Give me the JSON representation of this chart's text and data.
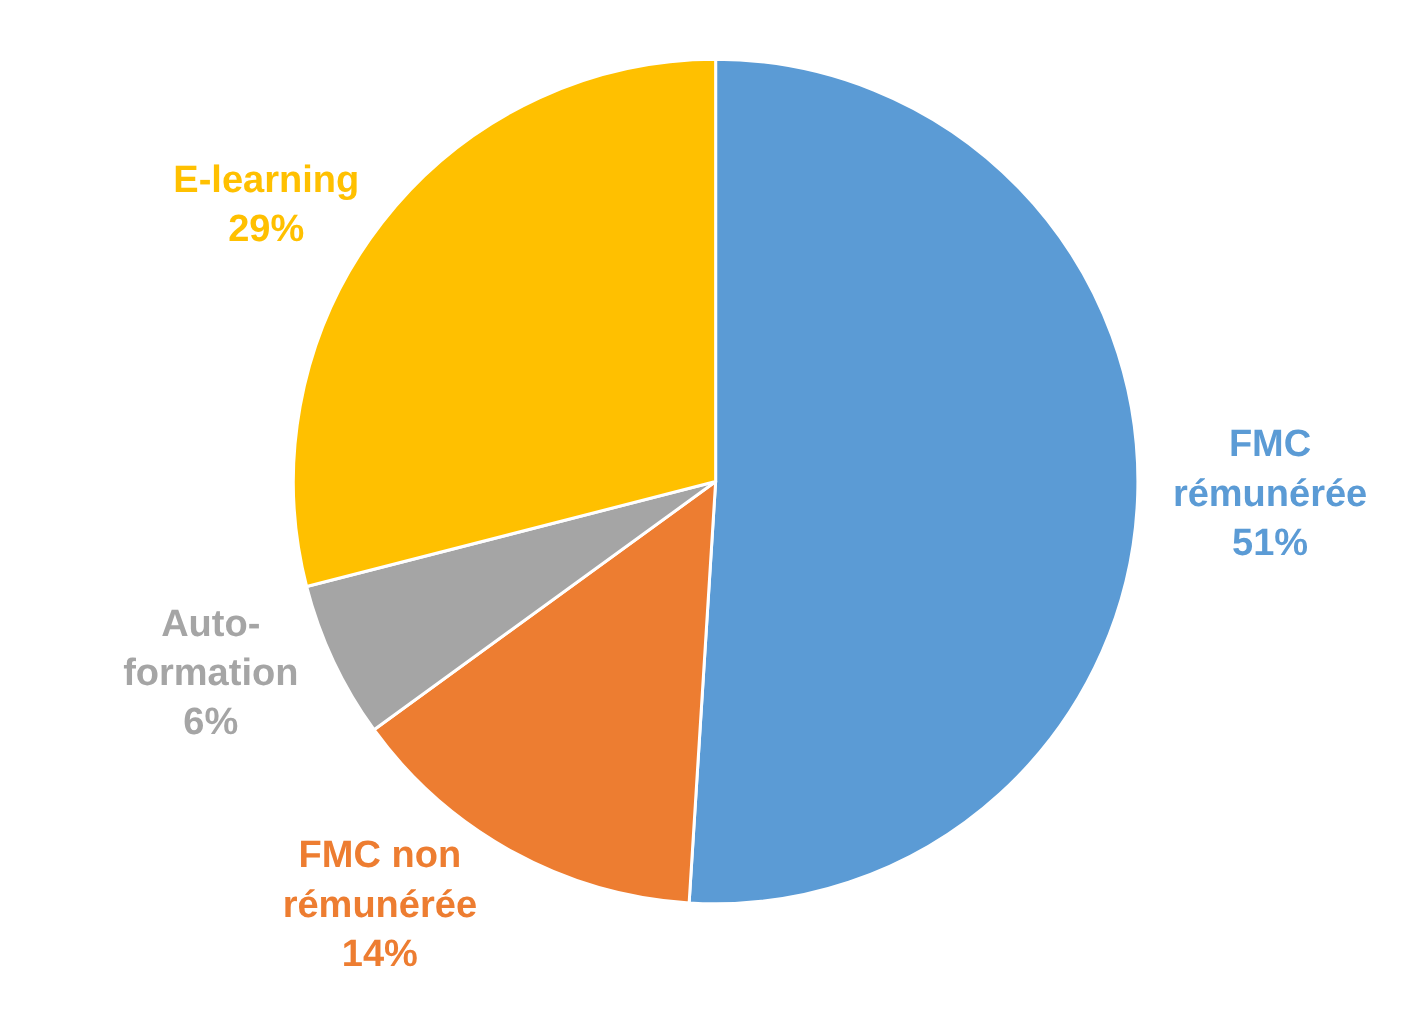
{
  "chart_data": {
    "type": "pie",
    "categories": [
      "FMC\nrémunérée",
      "FMC non\nrémunérée",
      "Auto-\nformation",
      "E-learning"
    ],
    "values": [
      51,
      14,
      6,
      29
    ],
    "value_labels": [
      "51%",
      "14%",
      "6%",
      "29%"
    ],
    "colors": [
      "#5b9bd5",
      "#ed7d31",
      "#a5a5a5",
      "#ffc000"
    ],
    "legend": false
  }
}
